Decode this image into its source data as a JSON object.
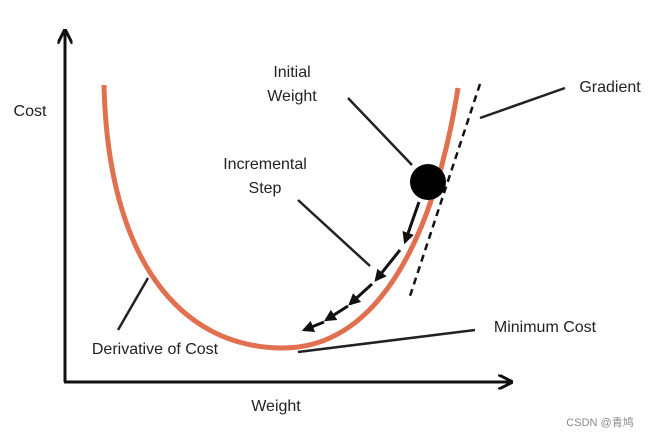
{
  "axes": {
    "y_label": "Cost",
    "x_label": "Weight"
  },
  "labels": {
    "initial_weight": [
      "Initial",
      "Weight"
    ],
    "incremental_step": [
      "Incremental",
      "Step"
    ],
    "gradient": "Gradient",
    "minimum_cost": "Minimum Cost",
    "derivative": "Derivative of Cost"
  },
  "watermark": "CSDN @青鸠"
}
